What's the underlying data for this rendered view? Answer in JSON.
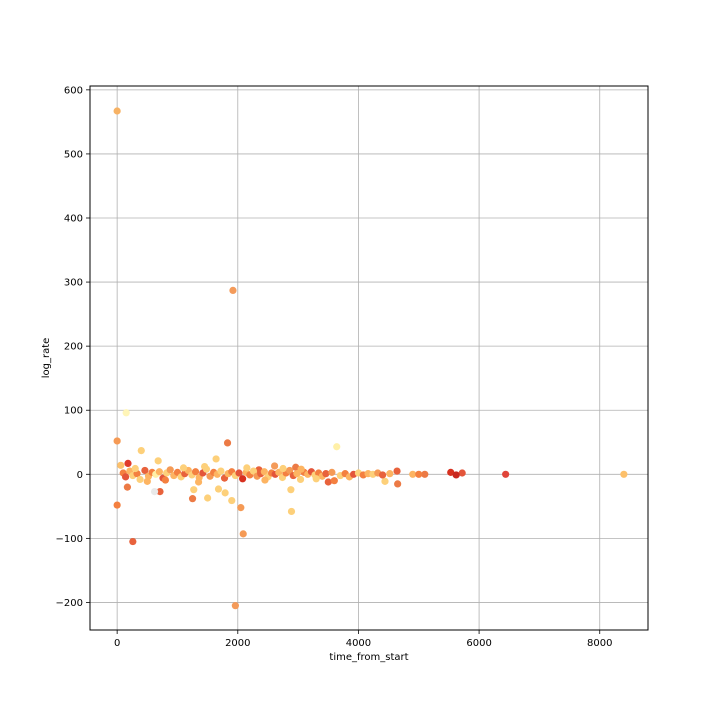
{
  "chart_data": {
    "type": "scatter",
    "title": "",
    "xlabel": "time_from_start",
    "ylabel": "log_rate",
    "xlim": [
      -450,
      8800
    ],
    "ylim": [
      -243,
      606
    ],
    "xticks": [
      0,
      2000,
      4000,
      6000,
      8000
    ],
    "yticks": [
      -200,
      -100,
      0,
      100,
      200,
      300,
      400,
      500,
      600
    ],
    "grid": true,
    "colormap": [
      "#fff5b8",
      "#fee391",
      "#fdb462",
      "#f48040",
      "#e3553a",
      "#d7301f"
    ],
    "points": [
      {
        "x": 0,
        "y": 567,
        "c": "#f7b264"
      },
      {
        "x": 1920,
        "y": 287,
        "c": "#f49b5a"
      },
      {
        "x": 150,
        "y": 96,
        "c": "#fff5b8"
      },
      {
        "x": 0,
        "y": 52,
        "c": "#f59a55"
      },
      {
        "x": 1830,
        "y": 49,
        "c": "#ec7a45"
      },
      {
        "x": 3640,
        "y": 43,
        "c": "#fff0a8"
      },
      {
        "x": 400,
        "y": 37,
        "c": "#fdd07a"
      },
      {
        "x": 680,
        "y": 21,
        "c": "#fdd07a"
      },
      {
        "x": 1640,
        "y": 24,
        "c": "#fdd07a"
      },
      {
        "x": 180,
        "y": 17,
        "c": "#e03a2a"
      },
      {
        "x": 60,
        "y": 14,
        "c": "#fdc06a"
      },
      {
        "x": 2610,
        "y": 13,
        "c": "#f49b5a"
      },
      {
        "x": 2960,
        "y": 11,
        "c": "#ec7a45"
      },
      {
        "x": 1450,
        "y": 12,
        "c": "#fdd07a"
      },
      {
        "x": 2350,
        "y": 7,
        "c": "#e8623c"
      },
      {
        "x": 4640,
        "y": 5,
        "c": "#e8623c"
      },
      {
        "x": 5530,
        "y": 3,
        "c": "#d7301f"
      },
      {
        "x": 5720,
        "y": 2,
        "c": "#e3553a"
      },
      {
        "x": 5620,
        "y": -1,
        "c": "#c82820"
      },
      {
        "x": 6440,
        "y": 0,
        "c": "#e0453a"
      },
      {
        "x": 8400,
        "y": 0,
        "c": "#fdc06a"
      },
      {
        "x": 5100,
        "y": 0,
        "c": "#ec7a45"
      },
      {
        "x": 4900,
        "y": 0,
        "c": "#fdb462"
      },
      {
        "x": 5000,
        "y": 0,
        "c": "#f48040"
      },
      {
        "x": 4440,
        "y": -11,
        "c": "#fdd07a"
      },
      {
        "x": 4650,
        "y": -15,
        "c": "#ec7a45"
      },
      {
        "x": 3500,
        "y": -12,
        "c": "#e8623c"
      },
      {
        "x": 3600,
        "y": -10,
        "c": "#f48040"
      },
      {
        "x": 2880,
        "y": -24,
        "c": "#fdd07a"
      },
      {
        "x": 1790,
        "y": -29,
        "c": "#fdd07a"
      },
      {
        "x": 1680,
        "y": -23,
        "c": "#fdd07a"
      },
      {
        "x": 1270,
        "y": -24,
        "c": "#fdd07a"
      },
      {
        "x": 170,
        "y": -20,
        "c": "#ec7a45"
      },
      {
        "x": 710,
        "y": -27,
        "c": "#e8623c"
      },
      {
        "x": 620,
        "y": -27,
        "c": "#e9e9e9"
      },
      {
        "x": 1500,
        "y": -37,
        "c": "#fdd07a"
      },
      {
        "x": 1250,
        "y": -38,
        "c": "#ec7a45"
      },
      {
        "x": 1900,
        "y": -41,
        "c": "#fdd07a"
      },
      {
        "x": 0,
        "y": -48,
        "c": "#f48040"
      },
      {
        "x": 2050,
        "y": -52,
        "c": "#f59a55"
      },
      {
        "x": 2890,
        "y": -58,
        "c": "#fdd07a"
      },
      {
        "x": 2090,
        "y": -93,
        "c": "#f59a55"
      },
      {
        "x": 260,
        "y": -105,
        "c": "#e8623c"
      },
      {
        "x": 1960,
        "y": -205,
        "c": "#f49b5a"
      },
      {
        "x": 100,
        "y": 2,
        "c": "#f48040"
      },
      {
        "x": 140,
        "y": -4,
        "c": "#e3553a"
      },
      {
        "x": 210,
        "y": 5,
        "c": "#fdb462"
      },
      {
        "x": 260,
        "y": -2,
        "c": "#fdd07a"
      },
      {
        "x": 330,
        "y": 1,
        "c": "#f48040"
      },
      {
        "x": 380,
        "y": -8,
        "c": "#fdd07a"
      },
      {
        "x": 460,
        "y": 6,
        "c": "#e8623c"
      },
      {
        "x": 520,
        "y": -3,
        "c": "#fdb462"
      },
      {
        "x": 580,
        "y": 3,
        "c": "#f48040"
      },
      {
        "x": 640,
        "y": 0,
        "c": "#fff0a8"
      },
      {
        "x": 700,
        "y": 4,
        "c": "#fdb462"
      },
      {
        "x": 760,
        "y": -6,
        "c": "#e3553a"
      },
      {
        "x": 820,
        "y": 2,
        "c": "#fdd07a"
      },
      {
        "x": 880,
        "y": 7,
        "c": "#f59a55"
      },
      {
        "x": 940,
        "y": -2,
        "c": "#fdb462"
      },
      {
        "x": 1000,
        "y": 3,
        "c": "#f48040"
      },
      {
        "x": 1060,
        "y": -4,
        "c": "#fdd07a"
      },
      {
        "x": 1120,
        "y": 1,
        "c": "#e8623c"
      },
      {
        "x": 1180,
        "y": 6,
        "c": "#fdb462"
      },
      {
        "x": 1240,
        "y": -1,
        "c": "#fdd07a"
      },
      {
        "x": 1300,
        "y": 4,
        "c": "#f48040"
      },
      {
        "x": 1360,
        "y": -5,
        "c": "#fdb462"
      },
      {
        "x": 1420,
        "y": 2,
        "c": "#e3553a"
      },
      {
        "x": 1480,
        "y": 8,
        "c": "#fdd07a"
      },
      {
        "x": 1540,
        "y": -3,
        "c": "#f59a55"
      },
      {
        "x": 1600,
        "y": 3,
        "c": "#f48040"
      },
      {
        "x": 1660,
        "y": 0,
        "c": "#fdb462"
      },
      {
        "x": 1720,
        "y": 5,
        "c": "#fdd07a"
      },
      {
        "x": 1780,
        "y": -6,
        "c": "#e8623c"
      },
      {
        "x": 1840,
        "y": 1,
        "c": "#fdb462"
      },
      {
        "x": 1900,
        "y": 4,
        "c": "#f48040"
      },
      {
        "x": 1960,
        "y": -2,
        "c": "#fdd07a"
      },
      {
        "x": 2020,
        "y": 2,
        "c": "#e3553a"
      },
      {
        "x": 2080,
        "y": -7,
        "c": "#d7301f"
      },
      {
        "x": 2140,
        "y": 3,
        "c": "#fdb462"
      },
      {
        "x": 2200,
        "y": -1,
        "c": "#f48040"
      },
      {
        "x": 2260,
        "y": 5,
        "c": "#fdd07a"
      },
      {
        "x": 2320,
        "y": -3,
        "c": "#f59a55"
      },
      {
        "x": 2380,
        "y": 1,
        "c": "#e8623c"
      },
      {
        "x": 2440,
        "y": 4,
        "c": "#fdb462"
      },
      {
        "x": 2500,
        "y": -4,
        "c": "#fdd07a"
      },
      {
        "x": 2560,
        "y": 2,
        "c": "#f48040"
      },
      {
        "x": 2620,
        "y": 0,
        "c": "#e3553a"
      },
      {
        "x": 2680,
        "y": 3,
        "c": "#fdb462"
      },
      {
        "x": 2740,
        "y": -5,
        "c": "#fdd07a"
      },
      {
        "x": 2800,
        "y": 2,
        "c": "#f48040"
      },
      {
        "x": 2860,
        "y": 6,
        "c": "#f59a55"
      },
      {
        "x": 2920,
        "y": -2,
        "c": "#e8623c"
      },
      {
        "x": 2980,
        "y": 1,
        "c": "#fdb462"
      },
      {
        "x": 3040,
        "y": -8,
        "c": "#fdd07a"
      },
      {
        "x": 3100,
        "y": 3,
        "c": "#f48040"
      },
      {
        "x": 3160,
        "y": 0,
        "c": "#fdb462"
      },
      {
        "x": 3220,
        "y": 4,
        "c": "#e3553a"
      },
      {
        "x": 3280,
        "y": -1,
        "c": "#fdd07a"
      },
      {
        "x": 3340,
        "y": 2,
        "c": "#f48040"
      },
      {
        "x": 3400,
        "y": -3,
        "c": "#fdb462"
      },
      {
        "x": 3460,
        "y": 1,
        "c": "#e8623c"
      },
      {
        "x": 3560,
        "y": 3,
        "c": "#f59a55"
      },
      {
        "x": 3700,
        "y": -2,
        "c": "#fdd07a"
      },
      {
        "x": 3780,
        "y": 1,
        "c": "#f48040"
      },
      {
        "x": 3850,
        "y": -4,
        "c": "#fdb462"
      },
      {
        "x": 3920,
        "y": 0,
        "c": "#e3553a"
      },
      {
        "x": 4000,
        "y": 2,
        "c": "#fdd07a"
      },
      {
        "x": 4080,
        "y": -1,
        "c": "#f48040"
      },
      {
        "x": 4160,
        "y": 1,
        "c": "#fdb462"
      },
      {
        "x": 4240,
        "y": 0,
        "c": "#fdd07a"
      },
      {
        "x": 4320,
        "y": 2,
        "c": "#f59a55"
      },
      {
        "x": 4400,
        "y": -1,
        "c": "#e8623c"
      },
      {
        "x": 4520,
        "y": 1,
        "c": "#fdb462"
      },
      {
        "x": 300,
        "y": 9,
        "c": "#fdd07a"
      },
      {
        "x": 500,
        "y": -11,
        "c": "#fdb462"
      },
      {
        "x": 800,
        "y": -9,
        "c": "#f48040"
      },
      {
        "x": 1100,
        "y": 10,
        "c": "#fdd07a"
      },
      {
        "x": 1350,
        "y": -12,
        "c": "#fdb462"
      },
      {
        "x": 2150,
        "y": 10,
        "c": "#fdd07a"
      },
      {
        "x": 2450,
        "y": -9,
        "c": "#fdb462"
      },
      {
        "x": 2750,
        "y": 9,
        "c": "#fdd07a"
      },
      {
        "x": 3050,
        "y": 8,
        "c": "#fdb462"
      },
      {
        "x": 3300,
        "y": -7,
        "c": "#fdd07a"
      }
    ]
  }
}
